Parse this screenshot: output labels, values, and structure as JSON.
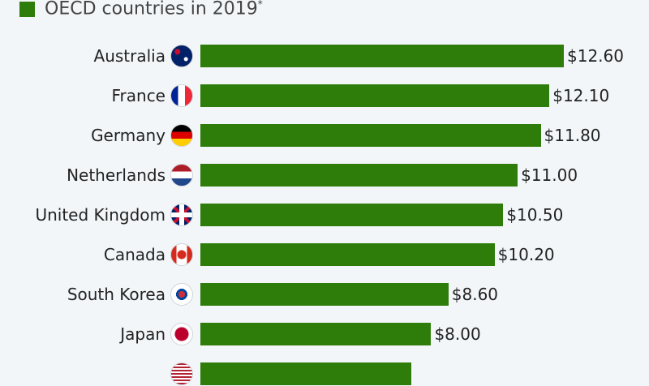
{
  "colors": {
    "bar": "#2e7d0a",
    "background": "#f3f6f9"
  },
  "chart_data": {
    "type": "bar",
    "orientation": "horizontal",
    "legend": {
      "label": "OECD countries in 2019",
      "footnote_mark": "*"
    },
    "categories": [
      "Australia",
      "France",
      "Germany",
      "Netherlands",
      "United Kingdom",
      "Canada",
      "South Korea",
      "Japan",
      ""
    ],
    "flags": [
      "flag-australia",
      "flag-france",
      "flag-germany",
      "flag-netherlands",
      "flag-uk",
      "flag-canada",
      "flag-south-korea",
      "flag-japan",
      "flag-usa"
    ],
    "values": [
      12.6,
      12.1,
      11.8,
      11.0,
      10.5,
      10.2,
      8.6,
      8.0,
      7.3
    ],
    "value_labels": [
      "$12.60",
      "$12.10",
      "$11.80",
      "$11.00",
      "$10.50",
      "$10.20",
      "$8.60",
      "$8.00",
      ""
    ],
    "xlim": [
      0,
      12.6
    ]
  }
}
